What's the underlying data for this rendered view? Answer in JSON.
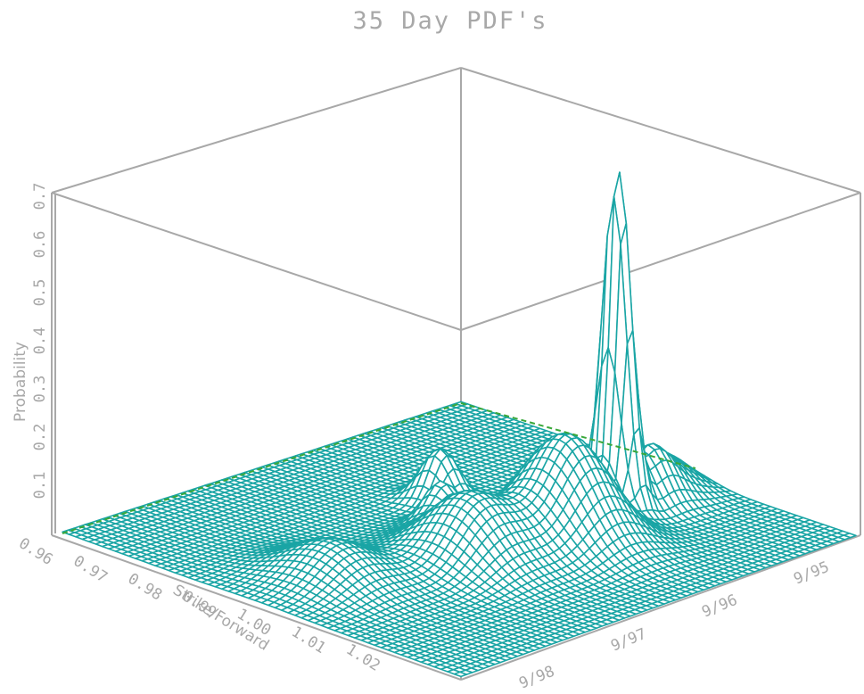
{
  "chart_data": {
    "type": "surface3d",
    "title": "35 Day PDF's",
    "zlabel": "Probability",
    "xlabel": "Strike/Forward",
    "ylabel": "",
    "z_ticks": [
      "0.1",
      "0.2",
      "0.3",
      "0.4",
      "0.5",
      "0.6",
      "0.7"
    ],
    "z_range": [
      0,
      0.7
    ],
    "x_ticks": [
      "0.96",
      "0.97",
      "0.98",
      "0.99",
      "1.00",
      "1.01",
      "1.02"
    ],
    "x_range": [
      0.96,
      1.025
    ],
    "y_ticks": [
      "9/98",
      "9/97",
      "9/96",
      "9/95"
    ],
    "mesh_color": "#1aa5a5",
    "frame_color": "#a8a8a8",
    "dashed_line_color": "#3aa83a",
    "peaks": [
      {
        "date": "9/98",
        "strike": 0.993,
        "probability": 0.08
      },
      {
        "date": "9/97",
        "strike": 1.002,
        "probability": 0.14
      },
      {
        "date": "9/96",
        "strike": 1.006,
        "probability": 0.22
      },
      {
        "date": "9/95",
        "strike": 1.003,
        "probability": 0.7
      }
    ]
  }
}
